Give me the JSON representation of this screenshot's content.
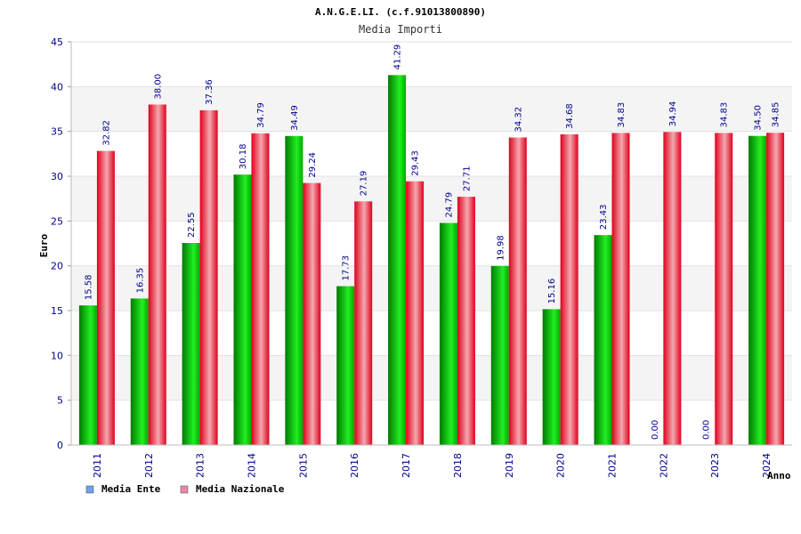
{
  "chart_data": {
    "type": "bar",
    "title": "A.N.G.E.LI. (c.f.91013800890)",
    "subtitle": "Media Importi",
    "xlabel": "Anno",
    "ylabel": "Euro",
    "ylim": [
      0,
      45
    ],
    "yticks": [
      0,
      5,
      10,
      15,
      20,
      25,
      30,
      35,
      40,
      45
    ],
    "grid": true,
    "legend_position": "bottom-left",
    "categories": [
      "2011",
      "2012",
      "2013",
      "2014",
      "2015",
      "2016",
      "2017",
      "2018",
      "2019",
      "2020",
      "2021",
      "2022",
      "2023",
      "2024"
    ],
    "series": [
      {
        "name": "Media Ente",
        "values": [
          15.58,
          16.35,
          22.55,
          30.18,
          34.49,
          17.73,
          41.29,
          24.79,
          19.98,
          15.16,
          23.43,
          0,
          0,
          34.5
        ],
        "labels": [
          "15.58",
          "16.35",
          "22.55",
          "30.18",
          "34.49",
          "17.73",
          "41.29",
          "24.79",
          "19.98",
          "15.16",
          "23.43",
          "0.00",
          "0.00",
          "34.50"
        ]
      },
      {
        "name": "Media Nazionale",
        "values": [
          32.82,
          38.0,
          37.36,
          34.79,
          29.24,
          27.19,
          29.43,
          27.71,
          34.32,
          34.68,
          34.83,
          34.94,
          34.83,
          34.85
        ],
        "labels": [
          "32.82",
          "38.00",
          "37.36",
          "34.79",
          "29.24",
          "27.19",
          "29.43",
          "27.71",
          "34.32",
          "34.68",
          "34.83",
          "34.94",
          "34.83",
          "34.85"
        ]
      }
    ]
  },
  "legend": {
    "items": [
      {
        "label": "Media Ente",
        "color": "#6fa0e8"
      },
      {
        "label": "Media Nazionale",
        "color": "#e88aa8"
      }
    ]
  },
  "colors": {
    "ente_dark": "#007a00",
    "ente_light": "#22ee22",
    "naz_dark": "#e0001c",
    "naz_light": "#f4a8b0",
    "axis_text": "#00008b",
    "title_text": "#000000",
    "subtitle_text": "#333333",
    "label_text": "#00008b",
    "band": "#f4f4f4"
  }
}
